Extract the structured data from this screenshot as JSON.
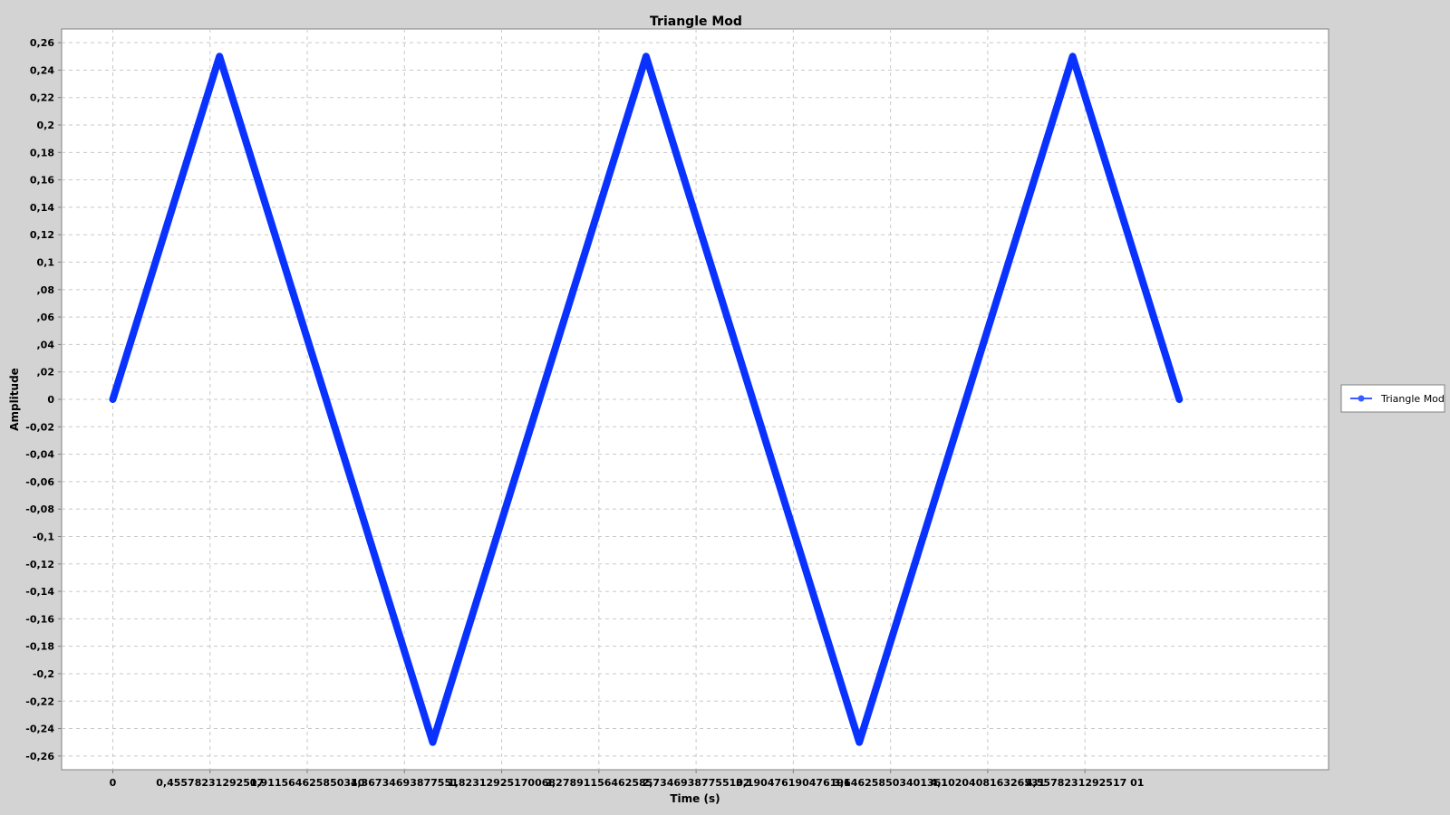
{
  "chart_data": {
    "type": "line",
    "title": "Triangle Mod",
    "xlabel": "Time (s)",
    "ylabel": "Amplitude",
    "xlim": [
      -0.24,
      5.7
    ],
    "ylim": [
      -0.27,
      0.27
    ],
    "grid": true,
    "legend_position": "right",
    "x_ticks": [
      0,
      0.45578231292517,
      0.91156462585034,
      1.36734693877551,
      1.82312925170068,
      2.27891156462585,
      2.73469387755102,
      3.19047619047619,
      3.64625850340136,
      4.10204081632653,
      4.5578231292517
    ],
    "x_tick_labels": [
      "0",
      "0,45578231292517",
      "0,911564625850340",
      "1,36734693877551",
      "1,82312925170068",
      "2,27891156462585",
      "2,73469387755102",
      "3,190476190476191",
      "3,646258503401361",
      "4,102040816326531",
      "4,5578231292517 01"
    ],
    "y_ticks": [
      0.26,
      0.24,
      0.22,
      0.2,
      0.18,
      0.16,
      0.14,
      0.12,
      0.1,
      0.08,
      0.06,
      0.04,
      0.02,
      0,
      -0.02,
      -0.04,
      -0.06,
      -0.08,
      -0.1,
      -0.12,
      -0.14,
      -0.16,
      -0.18,
      -0.2,
      -0.22,
      -0.24,
      -0.26
    ],
    "y_tick_labels": [
      "0,26",
      "0,24",
      "0,22",
      "0,2",
      "0,18",
      "0,16",
      "0,14",
      "0,12",
      "0,1",
      ",08",
      ",06",
      ",04",
      ",02",
      "0",
      "-0,02",
      "-0,04",
      "-0,06",
      "-0,08",
      "-0,1",
      "-0,12",
      "-0,14",
      "-0,16",
      "-0,18",
      "-0,2",
      "-0,22",
      "-0,24",
      "-0,26"
    ],
    "series": [
      {
        "name": "Triangle Mod",
        "color": "#0a32ff",
        "x": [
          0,
          0.5,
          1.5,
          2.5,
          3.5,
          4.5,
          5.0
        ],
        "y": [
          0,
          0.25,
          -0.25,
          0.25,
          -0.25,
          0.25,
          0
        ]
      }
    ]
  }
}
